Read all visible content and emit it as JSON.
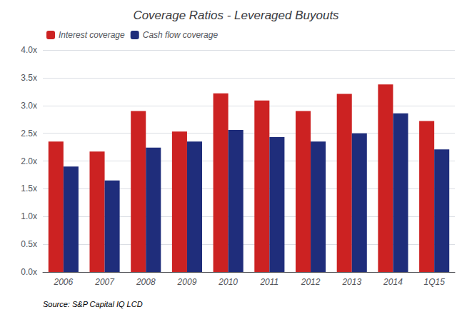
{
  "chart_data": {
    "type": "bar",
    "title": "Coverage Ratios - Leveraged Buyouts",
    "categories": [
      "2006",
      "2007",
      "2008",
      "2009",
      "2010",
      "2011",
      "2012",
      "2013",
      "2014",
      "1Q15"
    ],
    "series": [
      {
        "name": "Interest coverage",
        "color": "#CC2222",
        "values": [
          2.35,
          2.17,
          2.9,
          2.53,
          3.22,
          3.09,
          2.9,
          3.21,
          3.38,
          2.72
        ]
      },
      {
        "name": "Cash flow coverage",
        "color": "#1F2D7B",
        "values": [
          1.9,
          1.65,
          2.24,
          2.35,
          2.56,
          2.43,
          2.35,
          2.5,
          2.86,
          2.21
        ]
      }
    ],
    "ylim": [
      0,
      4.0
    ],
    "yticks": [
      {
        "value": 0.0,
        "label": "0.0x"
      },
      {
        "value": 0.5,
        "label": "0.5x"
      },
      {
        "value": 1.0,
        "label": "1.0x"
      },
      {
        "value": 1.5,
        "label": "1.5x"
      },
      {
        "value": 2.0,
        "label": "2.0x"
      },
      {
        "value": 2.5,
        "label": "2.5x"
      },
      {
        "value": 3.0,
        "label": "3.0x"
      },
      {
        "value": 3.5,
        "label": "3.5x"
      },
      {
        "value": 4.0,
        "label": "4.0x"
      }
    ],
    "grid": true,
    "legend": "upper left",
    "annotations": [
      "Source: S&P Capital IQ LCD"
    ]
  }
}
